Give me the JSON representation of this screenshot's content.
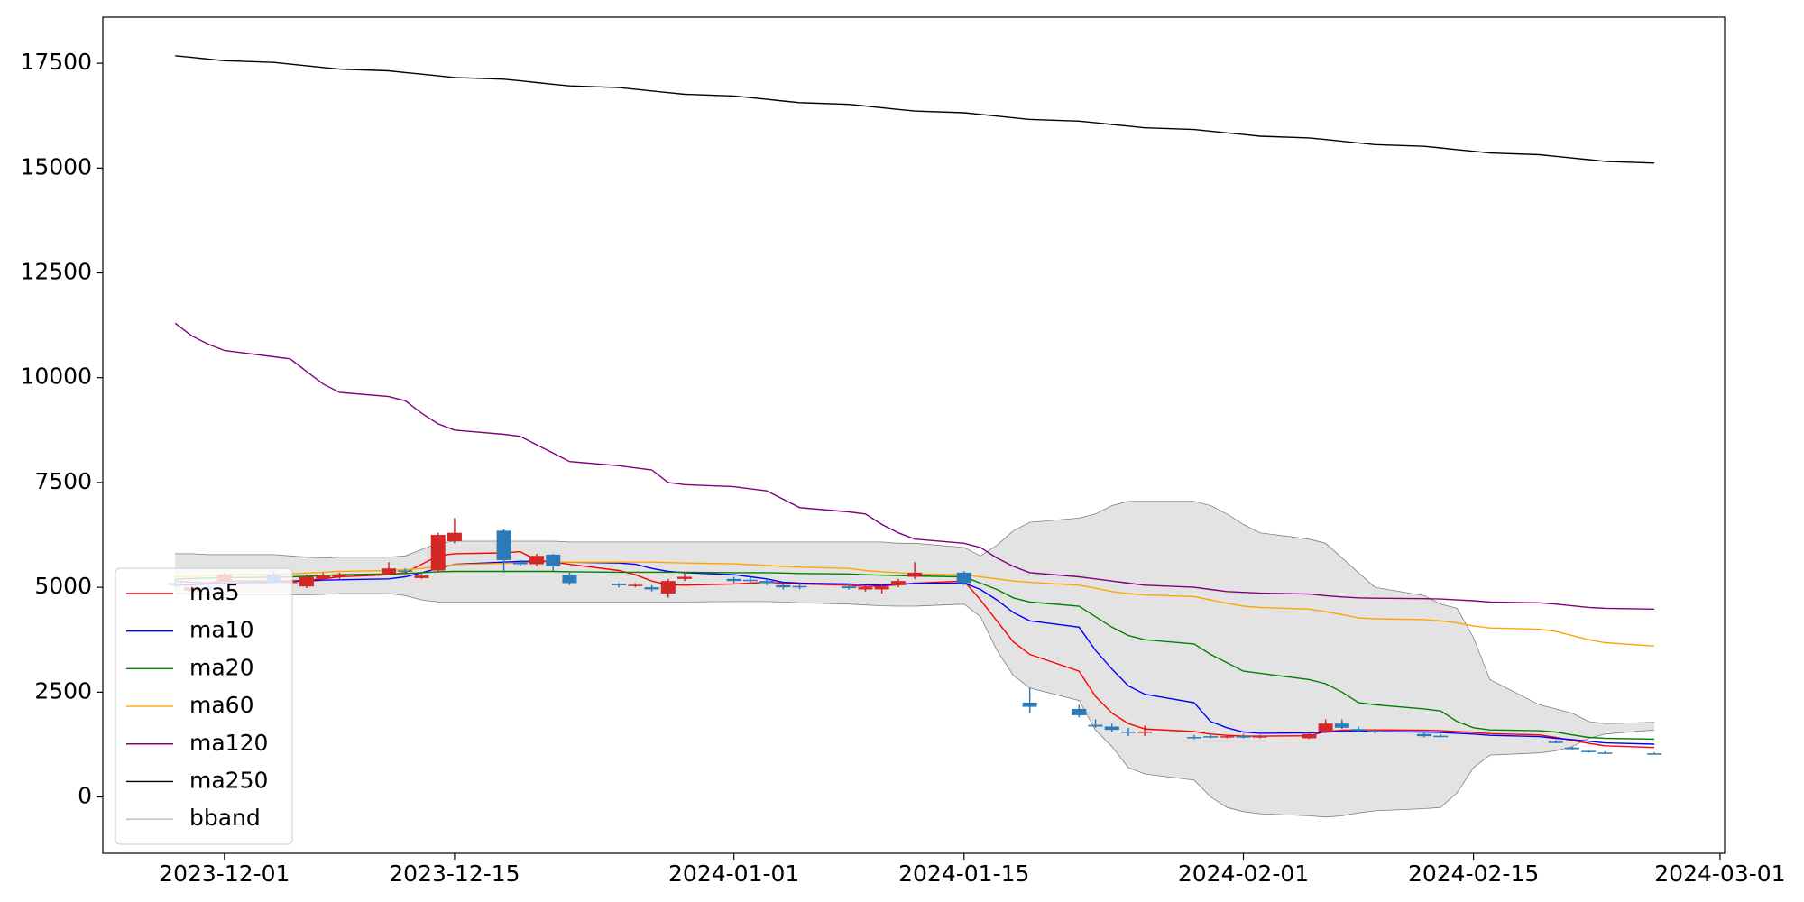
{
  "chart_data": {
    "type": "candlestick",
    "x": [
      "2023-11-28",
      "2023-11-29",
      "2023-11-30",
      "2023-12-01",
      "2023-12-04",
      "2023-12-05",
      "2023-12-06",
      "2023-12-07",
      "2023-12-08",
      "2023-12-11",
      "2023-12-12",
      "2023-12-13",
      "2023-12-14",
      "2023-12-15",
      "2023-12-18",
      "2023-12-19",
      "2023-12-20",
      "2023-12-21",
      "2023-12-22",
      "2023-12-25",
      "2023-12-26",
      "2023-12-27",
      "2023-12-28",
      "2023-12-29",
      "2024-01-01",
      "2024-01-02",
      "2024-01-03",
      "2024-01-04",
      "2024-01-05",
      "2024-01-08",
      "2024-01-09",
      "2024-01-10",
      "2024-01-11",
      "2024-01-12",
      "2024-01-15",
      "2024-01-16",
      "2024-01-17",
      "2024-01-18",
      "2024-01-19",
      "2024-01-22",
      "2024-01-23",
      "2024-01-24",
      "2024-01-25",
      "2024-01-26",
      "2024-01-29",
      "2024-01-30",
      "2024-01-31",
      "2024-02-01",
      "2024-02-02",
      "2024-02-05",
      "2024-02-06",
      "2024-02-07",
      "2024-02-08",
      "2024-02-09",
      "2024-02-12",
      "2024-02-13",
      "2024-02-14",
      "2024-02-15",
      "2024-02-16",
      "2024-02-19",
      "2024-02-20",
      "2024-02-21",
      "2024-02-22",
      "2024-02-23",
      "2024-02-26"
    ],
    "candles": {
      "up_color": "#d62728",
      "down_color": "#2b7bba",
      "open": [
        5100,
        4920,
        5000,
        5150,
        5300,
        5100,
        5020,
        5200,
        5250,
        5330,
        5400,
        5220,
        5400,
        6100,
        6350,
        5600,
        5550,
        5780,
        5300,
        5080,
        5050,
        5000,
        4850,
        5200,
        5200,
        5180,
        5150,
        5050,
        5030,
        5020,
        4950,
        4950,
        5050,
        5250,
        5350,
        null,
        null,
        null,
        2250,
        2100,
        1720,
        1680,
        1560,
        1540,
        1430,
        1450,
        1440,
        1450,
        1430,
        1400,
        1550,
        1750,
        1620,
        1580,
        1500,
        1460,
        null,
        null,
        null,
        null,
        1320,
        1180,
        1100,
        1060,
        1040
      ],
      "high": [
        5200,
        5050,
        5080,
        5350,
        5380,
        5200,
        5300,
        5350,
        5350,
        5600,
        5450,
        5320,
        6300,
        6650,
        6380,
        5650,
        5800,
        5800,
        5350,
        5100,
        5100,
        5050,
        5200,
        5350,
        5250,
        5250,
        5200,
        5100,
        5100,
        5100,
        5050,
        5050,
        5200,
        5600,
        5380,
        null,
        null,
        null,
        2600,
        2200,
        1850,
        1750,
        1650,
        1700,
        1480,
        1500,
        1480,
        1500,
        1480,
        1550,
        1850,
        1850,
        1680,
        1620,
        1540,
        1500,
        null,
        null,
        null,
        null,
        1350,
        1200,
        1120,
        1090,
        1060
      ],
      "low": [
        5000,
        4880,
        4950,
        5100,
        5100,
        5050,
        4980,
        5150,
        5200,
        5300,
        5350,
        5200,
        5350,
        6050,
        5350,
        5500,
        5500,
        5400,
        5050,
        5000,
        5000,
        4900,
        4750,
        5150,
        5100,
        5100,
        5050,
        4950,
        4950,
        4950,
        4900,
        4850,
        5000,
        5200,
        5050,
        null,
        null,
        null,
        2000,
        1900,
        1650,
        1550,
        1450,
        1450,
        1380,
        1400,
        1400,
        1400,
        1400,
        1380,
        1520,
        1620,
        1560,
        1520,
        1420,
        1420,
        null,
        null,
        null,
        null,
        1280,
        1120,
        1050,
        1030,
        1020
      ],
      "close": [
        5050,
        5000,
        4980,
        5300,
        5120,
        5150,
        5250,
        5280,
        5300,
        5450,
        5380,
        5280,
        6250,
        6300,
        5650,
        5550,
        5750,
        5500,
        5100,
        5050,
        5060,
        4950,
        5150,
        5250,
        5150,
        5150,
        5100,
        5000,
        5000,
        4980,
        5000,
        5020,
        5150,
        5350,
        5100,
        null,
        null,
        null,
        2150,
        1950,
        1680,
        1600,
        1530,
        1560,
        1400,
        1440,
        1450,
        1430,
        1450,
        1500,
        1750,
        1650,
        1580,
        1550,
        1450,
        1440,
        null,
        null,
        null,
        null,
        1290,
        1140,
        1080,
        1050,
        1030
      ]
    },
    "series": [
      {
        "name": "ma5",
        "color": "#ff0000",
        "values": [
          5150,
          5120,
          5100,
          5150,
          5150,
          5150,
          5170,
          5200,
          5250,
          5300,
          5350,
          5550,
          5750,
          5800,
          5820,
          5850,
          5650,
          5600,
          5550,
          5400,
          5300,
          5150,
          5060,
          5050,
          5080,
          5100,
          5120,
          5100,
          5080,
          5050,
          5020,
          5030,
          5060,
          5100,
          5150,
          4700,
          4200,
          3700,
          3400,
          3000,
          2400,
          2000,
          1750,
          1620,
          1560,
          1500,
          1470,
          1450,
          1450,
          1460,
          1560,
          1590,
          1600,
          1600,
          1590,
          1580,
          1560,
          1540,
          1510,
          1480,
          1420,
          1350,
          1280,
          1220,
          1180
        ]
      },
      {
        "name": "ma10",
        "color": "#0000ff",
        "values": [
          5050,
          5060,
          5080,
          5100,
          5120,
          5140,
          5150,
          5170,
          5180,
          5200,
          5250,
          5350,
          5450,
          5550,
          5600,
          5620,
          5620,
          5600,
          5600,
          5580,
          5550,
          5450,
          5380,
          5350,
          5300,
          5250,
          5200,
          5120,
          5100,
          5080,
          5060,
          5050,
          5070,
          5090,
          5100,
          4950,
          4700,
          4400,
          4200,
          4050,
          3500,
          3050,
          2650,
          2450,
          2250,
          1800,
          1650,
          1550,
          1520,
          1530,
          1550,
          1560,
          1570,
          1560,
          1550,
          1540,
          1520,
          1500,
          1470,
          1440,
          1400,
          1370,
          1330,
          1290,
          1260
        ]
      },
      {
        "name": "ma20",
        "color": "#008000",
        "values": [
          5200,
          5210,
          5220,
          5230,
          5240,
          5250,
          5260,
          5280,
          5300,
          5320,
          5330,
          5350,
          5370,
          5380,
          5380,
          5380,
          5380,
          5380,
          5370,
          5360,
          5360,
          5360,
          5360,
          5360,
          5350,
          5350,
          5350,
          5340,
          5330,
          5320,
          5300,
          5290,
          5280,
          5270,
          5250,
          5100,
          4950,
          4750,
          4650,
          4550,
          4300,
          4050,
          3850,
          3750,
          3650,
          3400,
          3200,
          3000,
          2950,
          2800,
          2700,
          2500,
          2250,
          2200,
          2100,
          2050,
          1800,
          1650,
          1600,
          1580,
          1550,
          1480,
          1420,
          1400,
          1380
        ]
      },
      {
        "name": "ma60",
        "color": "#ffa500",
        "values": [
          5250,
          5260,
          5280,
          5300,
          5310,
          5320,
          5340,
          5360,
          5380,
          5400,
          5420,
          5450,
          5500,
          5540,
          5570,
          5590,
          5600,
          5600,
          5600,
          5600,
          5600,
          5600,
          5590,
          5580,
          5560,
          5540,
          5520,
          5500,
          5480,
          5450,
          5400,
          5370,
          5350,
          5320,
          5300,
          5250,
          5200,
          5150,
          5120,
          5050,
          4980,
          4900,
          4850,
          4820,
          4780,
          4700,
          4620,
          4550,
          4520,
          4480,
          4420,
          4350,
          4270,
          4250,
          4230,
          4200,
          4150,
          4080,
          4030,
          4000,
          3950,
          3850,
          3750,
          3680,
          3600
        ]
      },
      {
        "name": "ma120",
        "color": "#800080",
        "values": [
          11300,
          11000,
          10800,
          10650,
          10500,
          10450,
          10150,
          9850,
          9650,
          9550,
          9450,
          9150,
          8900,
          8750,
          8650,
          8600,
          8400,
          8200,
          8000,
          7900,
          7850,
          7800,
          7500,
          7450,
          7400,
          7350,
          7300,
          7100,
          6900,
          6800,
          6750,
          6500,
          6300,
          6150,
          6050,
          5950,
          5700,
          5500,
          5350,
          5250,
          5200,
          5150,
          5100,
          5050,
          5000,
          4950,
          4900,
          4880,
          4860,
          4840,
          4800,
          4770,
          4750,
          4740,
          4730,
          4720,
          4700,
          4680,
          4650,
          4630,
          4600,
          4560,
          4520,
          4500,
          4480
        ]
      },
      {
        "name": "ma250",
        "color": "#000000",
        "values": [
          17680,
          17640,
          17600,
          17560,
          17520,
          17480,
          17440,
          17400,
          17360,
          17320,
          17280,
          17240,
          17200,
          17160,
          17120,
          17080,
          17040,
          17000,
          16960,
          16920,
          16880,
          16840,
          16800,
          16760,
          16720,
          16680,
          16640,
          16600,
          16560,
          16520,
          16480,
          16440,
          16400,
          16360,
          16320,
          16280,
          16240,
          16200,
          16160,
          16120,
          16080,
          16040,
          16000,
          15960,
          15920,
          15880,
          15840,
          15800,
          15760,
          15720,
          15680,
          15640,
          15600,
          15560,
          15520,
          15480,
          15440,
          15400,
          15360,
          15320,
          15280,
          15240,
          15200,
          15160,
          15120
        ]
      }
    ],
    "bband": {
      "name": "bband",
      "color": "#808080",
      "fill": "#e3e3e3",
      "upper": [
        5800,
        5800,
        5780,
        5780,
        5780,
        5750,
        5720,
        5700,
        5720,
        5720,
        5750,
        5900,
        6050,
        6100,
        6100,
        6100,
        6100,
        6100,
        6080,
        6080,
        6080,
        6080,
        6080,
        6080,
        6080,
        6080,
        6080,
        6080,
        6080,
        6080,
        6080,
        6080,
        6050,
        6050,
        5950,
        5750,
        6000,
        6350,
        6550,
        6650,
        6750,
        6950,
        7050,
        7050,
        7050,
        6950,
        6750,
        6500,
        6300,
        6150,
        6050,
        5700,
        5350,
        5000,
        4800,
        4600,
        4500,
        3800,
        2800,
        2200,
        2100,
        2000,
        1800,
        1750,
        1780
      ],
      "lower": [
        4850,
        4830,
        4820,
        4820,
        4820,
        4820,
        4820,
        4830,
        4850,
        4850,
        4800,
        4700,
        4650,
        4650,
        4650,
        4650,
        4650,
        4650,
        4650,
        4650,
        4650,
        4650,
        4650,
        4650,
        4660,
        4660,
        4660,
        4650,
        4630,
        4600,
        4580,
        4560,
        4550,
        4550,
        4600,
        4300,
        3500,
        2900,
        2600,
        2300,
        1600,
        1200,
        700,
        550,
        400,
        0,
        -250,
        -350,
        -400,
        -450,
        -480,
        -450,
        -380,
        -330,
        -280,
        -250,
        100,
        700,
        1000,
        1050,
        1100,
        1200,
        1400,
        1500,
        1600
      ]
    },
    "xlim": [
      "2023-11-23T14:24",
      "2024-03-01T06:40"
    ],
    "xticks": [
      "2023-12-01",
      "2023-12-15",
      "2024-01-01",
      "2024-01-15",
      "2024-02-01",
      "2024-02-15",
      "2024-03-01"
    ],
    "ylim": [
      -1344,
      18600
    ],
    "yticks": [
      0,
      2500,
      5000,
      7500,
      10000,
      12500,
      15000,
      17500
    ],
    "legend": "lower left"
  }
}
